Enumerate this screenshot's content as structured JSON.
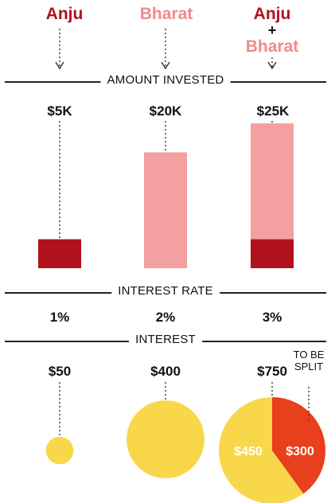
{
  "header": {
    "people": [
      {
        "name": "Anju"
      },
      {
        "name": "Bharat"
      },
      {
        "name_a": "Anju",
        "plus": "+",
        "name_b": "Bharat"
      }
    ]
  },
  "sections": {
    "amount": "AMOUNT INVESTED",
    "rate": "INTEREST RATE",
    "interest": "INTEREST"
  },
  "colors": {
    "anju": "#b0121b",
    "bharat": "#f5a0a0",
    "interest_circle": "#f8d84a",
    "split_share": "#e8401c"
  },
  "chart_data": {
    "type": "bar",
    "categories": [
      "Anju",
      "Bharat",
      "Anju + Bharat"
    ],
    "amount_invested": {
      "labels": [
        "$5K",
        "$20K",
        "$25K"
      ],
      "values": [
        5000,
        20000,
        25000
      ],
      "stack_in_combined": [
        {
          "name": "Anju",
          "value": 5000
        },
        {
          "name": "Bharat",
          "value": 20000
        }
      ]
    },
    "interest_rate": {
      "labels": [
        "1%",
        "2%",
        "3%"
      ],
      "values": [
        1,
        2,
        3
      ]
    },
    "interest": {
      "labels": [
        "$50",
        "$400",
        "$750"
      ],
      "values": [
        50,
        400,
        750
      ],
      "split": {
        "note": "TO BE SPLIT",
        "slices": [
          {
            "label": "$450",
            "value": 450
          },
          {
            "label": "$300",
            "value": 300
          }
        ]
      }
    }
  }
}
